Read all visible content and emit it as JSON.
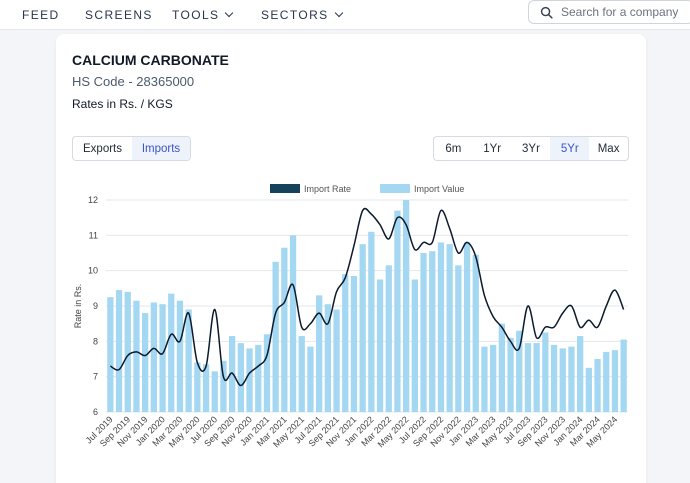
{
  "nav": {
    "items": [
      {
        "label": "FEED",
        "dropdown": false
      },
      {
        "label": "SCREENS",
        "dropdown": false
      },
      {
        "label": "TOOLS",
        "dropdown": true
      },
      {
        "label": "SECTORS",
        "dropdown": true
      }
    ],
    "search_placeholder": "Search for a company"
  },
  "product": {
    "title": "CALCIUM CARBONATE",
    "hs_code": "HS Code - 28365000",
    "rates_unit": "Rates in Rs. / KGS"
  },
  "trade_toggle": {
    "options": [
      "Exports",
      "Imports"
    ],
    "selected": "Imports"
  },
  "range_toggle": {
    "options": [
      "6m",
      "1Yr",
      "3Yr",
      "5Yr",
      "Max"
    ],
    "selected": "5Yr"
  },
  "colors": {
    "bar": "#a3d7f2",
    "line": "#0b1a2c",
    "legend_line": "#16425b",
    "active_text": "#3b55c8"
  },
  "chart_data": {
    "type": "bar+line",
    "ylabel": "Rate in Rs.",
    "ylim": [
      6,
      12
    ],
    "yticks": [
      6,
      7,
      8,
      9,
      10,
      11,
      12
    ],
    "legend": [
      "Import Rate",
      "Import Value"
    ],
    "legend_position": "top-center",
    "x": [
      "Jul 2019",
      "Aug 2019",
      "Sep 2019",
      "Oct 2019",
      "Nov 2019",
      "Dec 2019",
      "Jan 2020",
      "Feb 2020",
      "Mar 2020",
      "Apr 2020",
      "May 2020",
      "Jun 2020",
      "Jul 2020",
      "Aug 2020",
      "Sep 2020",
      "Oct 2020",
      "Nov 2020",
      "Dec 2020",
      "Jan 2021",
      "Feb 2021",
      "Mar 2021",
      "Apr 2021",
      "May 2021",
      "Jun 2021",
      "Jul 2021",
      "Aug 2021",
      "Sep 2021",
      "Oct 2021",
      "Nov 2021",
      "Dec 2021",
      "Jan 2022",
      "Feb 2022",
      "Mar 2022",
      "Apr 2022",
      "May 2022",
      "Jun 2022",
      "Jul 2022",
      "Aug 2022",
      "Sep 2022",
      "Oct 2022",
      "Nov 2022",
      "Dec 2022",
      "Jan 2023",
      "Feb 2023",
      "Mar 2023",
      "Apr 2023",
      "May 2023",
      "Jun 2023",
      "Jul 2023",
      "Aug 2023",
      "Sep 2023",
      "Oct 2023",
      "Nov 2023",
      "Dec 2023",
      "Jan 2024",
      "Feb 2024",
      "Mar 2024",
      "Apr 2024",
      "May 2024",
      "Jun 2024"
    ],
    "x_tick_labels": [
      "Jul 2019",
      "Sep 2019",
      "Nov 2019",
      "Jan 2020",
      "Mar 2020",
      "May 2020",
      "Jul 2020",
      "Sep 2020",
      "Nov 2020",
      "Jan 2021",
      "Mar 2021",
      "May 2021",
      "Jul 2021",
      "Sep 2021",
      "Nov 2021",
      "Jan 2022",
      "Mar 2022",
      "May 2022",
      "Jul 2022",
      "Sep 2022",
      "Nov 2022",
      "Jan 2023",
      "Mar 2023",
      "May 2023",
      "Jul 2023",
      "Sep 2023",
      "Nov 2023",
      "Jan 2024",
      "Mar 2024",
      "May 2024"
    ],
    "series": [
      {
        "name": "Import Value",
        "kind": "bar",
        "values": [
          9.25,
          9.45,
          9.4,
          9.15,
          8.8,
          9.1,
          9.05,
          9.35,
          9.15,
          8.9,
          7.4,
          7.35,
          7.15,
          7.45,
          8.15,
          7.95,
          7.8,
          7.9,
          8.2,
          10.25,
          10.65,
          11.0,
          8.15,
          7.85,
          9.3,
          9.05,
          8.9,
          9.9,
          9.85,
          10.75,
          11.1,
          9.75,
          10.15,
          11.7,
          12.0,
          9.75,
          10.5,
          10.55,
          10.8,
          10.75,
          10.15,
          10.8,
          10.45,
          7.85,
          7.9,
          8.5,
          8.1,
          8.3,
          7.95,
          7.95,
          8.25,
          7.9,
          7.8,
          7.85,
          8.15,
          7.25,
          7.5,
          7.7,
          7.75,
          8.05
        ]
      },
      {
        "name": "Import Rate",
        "kind": "line",
        "values": [
          7.3,
          7.2,
          7.6,
          7.7,
          7.6,
          7.8,
          7.65,
          8.2,
          8.0,
          8.8,
          7.4,
          7.3,
          8.9,
          7.0,
          7.1,
          6.75,
          7.1,
          7.3,
          7.6,
          8.8,
          9.1,
          9.6,
          8.4,
          8.5,
          8.8,
          8.5,
          9.4,
          9.8,
          10.7,
          11.7,
          11.6,
          11.3,
          10.9,
          11.5,
          11.3,
          10.6,
          10.8,
          10.8,
          11.7,
          11.2,
          10.5,
          10.8,
          10.4,
          9.3,
          8.7,
          8.4,
          8.0,
          7.8,
          9.0,
          8.1,
          8.4,
          8.4,
          8.8,
          9.0,
          8.4,
          8.6,
          8.4,
          9.0,
          9.45,
          8.9
        ]
      }
    ]
  }
}
